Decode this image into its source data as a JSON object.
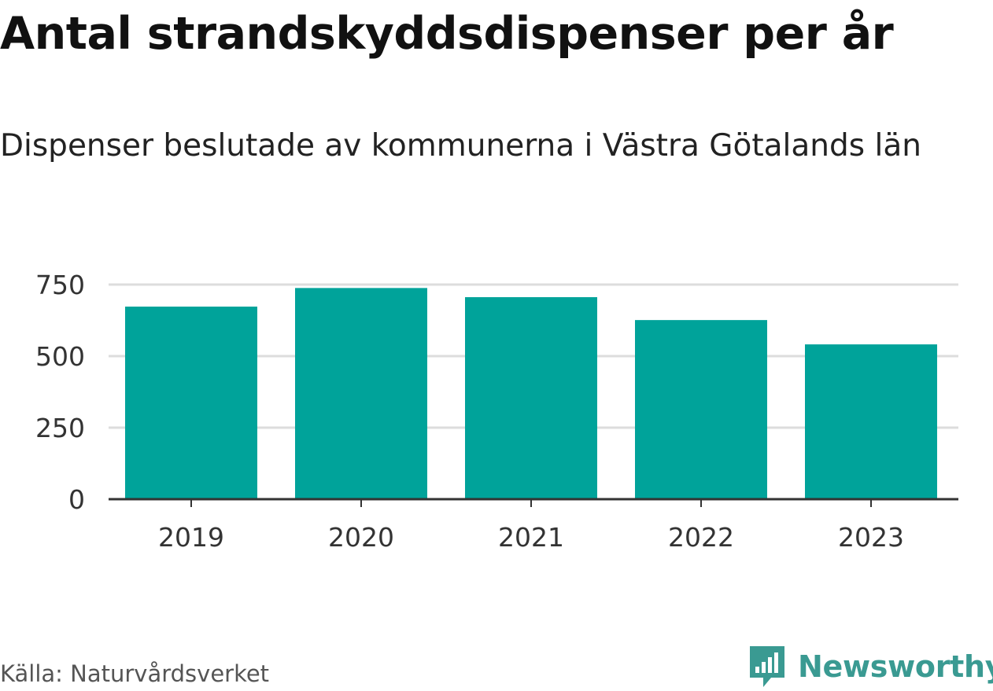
{
  "header": {
    "title": "Antal strandskyddsdispenser per år",
    "subtitle": "Dispenser beslutade av kommunerna i Västra Götalands län"
  },
  "footer": {
    "source": "Källa: Naturvårdsverket",
    "brand": "Newsworthy",
    "brand_icon": "newsworthy-logo-icon"
  },
  "colors": {
    "bar": "#00A39A",
    "grid": "#dddddd",
    "axis": "#333333",
    "brand": "#3a9a92"
  },
  "chart_data": {
    "type": "bar",
    "title": "Antal strandskyddsdispenser per år",
    "subtitle": "Dispenser beslutade av kommunerna i Västra Götalands län",
    "xlabel": "",
    "ylabel": "",
    "categories": [
      "2019",
      "2020",
      "2021",
      "2022",
      "2023"
    ],
    "values": [
      673,
      738,
      706,
      626,
      541
    ],
    "ylim": [
      0,
      750
    ],
    "yticks": [
      0,
      250,
      500,
      750
    ],
    "grid": true,
    "legend": "none"
  }
}
